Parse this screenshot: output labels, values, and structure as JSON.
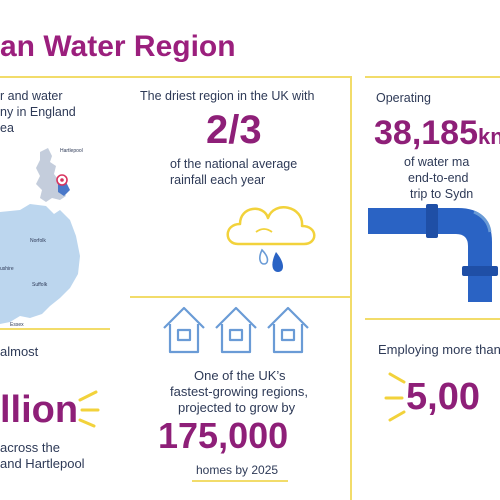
{
  "title": "an Water Region",
  "col1": {
    "top_line1": "r and water",
    "top_line2": "ny in England",
    "top_line3": "ea",
    "map_labels": {
      "hartlepool": "Hartlepool",
      "norfolk": "Norfolk",
      "shire": "ushire",
      "suffolk": "Suffolk",
      "essex": "Essex"
    },
    "almost": "almost",
    "million": "llion",
    "across1": "across the",
    "across2": "and Hartlepool"
  },
  "col2": {
    "driest": "The driest region in the UK with",
    "fraction": "2/3",
    "avg_line1": "of the national average",
    "avg_line2": "rainfall each year",
    "growth_line1": "One of the UK’s",
    "growth_line2": "fastest-growing regions,",
    "growth_line3": "projected to grow by",
    "homes_number": "175,000",
    "homes_by": "homes by 2025"
  },
  "col3": {
    "operating": "Operating",
    "km": "38,185",
    "km_unit": "kn",
    "mains_line1": "of water ma",
    "mains_line2": "end-to-end",
    "mains_line3": "trip to Sydn",
    "employing": "Employing more than",
    "employees": "5,00"
  },
  "colors": {
    "purple": "#8e1f78",
    "navy": "#2e3a57",
    "yellow": "#f2dc6a",
    "blue": "#2a63c4",
    "lightblue": "#bcd6ee"
  }
}
